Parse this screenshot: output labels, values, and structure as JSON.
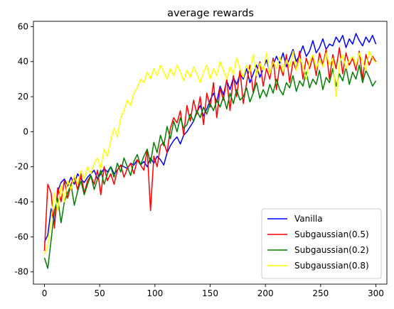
{
  "chart_data": {
    "type": "line",
    "title": "average rewards",
    "xlabel": "",
    "ylabel": "",
    "xlim": [
      -10,
      310
    ],
    "ylim": [
      -87,
      63
    ],
    "xticks": [
      0,
      50,
      100,
      150,
      200,
      250,
      300
    ],
    "yticks": [
      -80,
      -60,
      -40,
      -20,
      0,
      20,
      40,
      60
    ],
    "grid": false,
    "legend_position": "lower-right",
    "x_start": 0,
    "x_step": 3,
    "series": [
      {
        "name": "Vanilla",
        "color": "#0000ff",
        "values": [
          -63,
          -59,
          -44,
          -52,
          -34,
          -29,
          -27,
          -31,
          -26,
          -30,
          -24,
          -27,
          -29,
          -26,
          -24,
          -22,
          -27,
          -24,
          -21,
          -23,
          -20,
          -24,
          -22,
          -19,
          -20,
          -21,
          -18,
          -19,
          -16,
          -19,
          -17,
          -20,
          -15,
          -18,
          -14,
          -16,
          -19,
          -12,
          -8,
          -5,
          -3,
          -7,
          -2,
          0,
          3,
          6,
          11,
          15,
          9,
          13,
          18,
          22,
          17,
          26,
          21,
          29,
          24,
          31,
          27,
          33,
          30,
          36,
          28,
          33,
          38,
          31,
          36,
          41,
          34,
          38,
          43,
          39,
          45,
          37,
          42,
          47,
          40,
          44,
          49,
          43,
          46,
          52,
          45,
          48,
          53,
          47,
          50,
          49,
          54,
          51,
          55,
          48,
          53,
          50,
          56,
          52,
          49,
          54,
          51,
          55,
          50
        ]
      },
      {
        "name": "Subgaussian(0.5)",
        "color": "#ff0000",
        "values": [
          -68,
          -30,
          -35,
          -55,
          -32,
          -40,
          -28,
          -38,
          -30,
          -26,
          -33,
          -24,
          -35,
          -28,
          -25,
          -30,
          -22,
          -36,
          -20,
          -28,
          -24,
          -30,
          -22,
          -19,
          -26,
          -21,
          -18,
          -24,
          -16,
          -19,
          -22,
          -10,
          -45,
          -14,
          -20,
          -8,
          -6,
          -12,
          2,
          8,
          5,
          12,
          -2,
          15,
          6,
          18,
          10,
          20,
          4,
          22,
          14,
          28,
          8,
          25,
          18,
          30,
          12,
          32,
          20,
          35,
          16,
          28,
          38,
          22,
          33,
          40,
          26,
          36,
          30,
          42,
          24,
          38,
          32,
          44,
          28,
          40,
          35,
          46,
          30,
          42,
          36,
          43,
          32,
          45,
          38,
          47,
          30,
          44,
          36,
          48,
          33,
          45,
          38,
          42,
          35,
          46,
          30,
          44,
          38,
          43,
          40
        ]
      },
      {
        "name": "Subgaussian(0.2)",
        "color": "#008000",
        "values": [
          -72,
          -78,
          -62,
          -45,
          -38,
          -52,
          -40,
          -35,
          -30,
          -42,
          -34,
          -28,
          -36,
          -30,
          -25,
          -33,
          -27,
          -22,
          -30,
          -24,
          -20,
          -26,
          -18,
          -23,
          -15,
          -20,
          -25,
          -17,
          -13,
          -19,
          -14,
          -10,
          -18,
          -6,
          -12,
          -2,
          -8,
          3,
          -4,
          6,
          0,
          8,
          2,
          4,
          10,
          6,
          12,
          8,
          14,
          10,
          16,
          12,
          18,
          14,
          20,
          13,
          22,
          16,
          24,
          18,
          20,
          25,
          17,
          22,
          28,
          19,
          24,
          20,
          27,
          22,
          30,
          24,
          21,
          28,
          25,
          32,
          23,
          29,
          26,
          34,
          25,
          30,
          27,
          35,
          24,
          31,
          28,
          36,
          26,
          33,
          29,
          37,
          27,
          34,
          30,
          38,
          28,
          35,
          31,
          26,
          29
        ]
      },
      {
        "name": "Subgaussian(0.8)",
        "color": "#ffff00",
        "values": [
          -70,
          -65,
          -50,
          -35,
          -45,
          -30,
          -40,
          -28,
          -33,
          -25,
          -30,
          -22,
          -27,
          -20,
          -24,
          -18,
          -15,
          -21,
          -10,
          -14,
          -5,
          2,
          -3,
          8,
          12,
          18,
          15,
          22,
          25,
          30,
          28,
          34,
          30,
          36,
          32,
          38,
          34,
          30,
          36,
          32,
          38,
          34,
          29,
          35,
          31,
          37,
          33,
          28,
          34,
          38,
          30,
          36,
          32,
          40,
          35,
          30,
          37,
          33,
          42,
          36,
          31,
          38,
          34,
          44,
          32,
          39,
          35,
          45,
          33,
          40,
          36,
          43,
          34,
          41,
          37,
          46,
          35,
          42,
          38,
          30,
          40,
          44,
          36,
          41,
          37,
          45,
          38,
          42,
          20,
          39,
          44,
          36,
          41,
          43,
          38,
          45,
          40,
          35,
          46,
          42,
          39
        ]
      }
    ]
  }
}
